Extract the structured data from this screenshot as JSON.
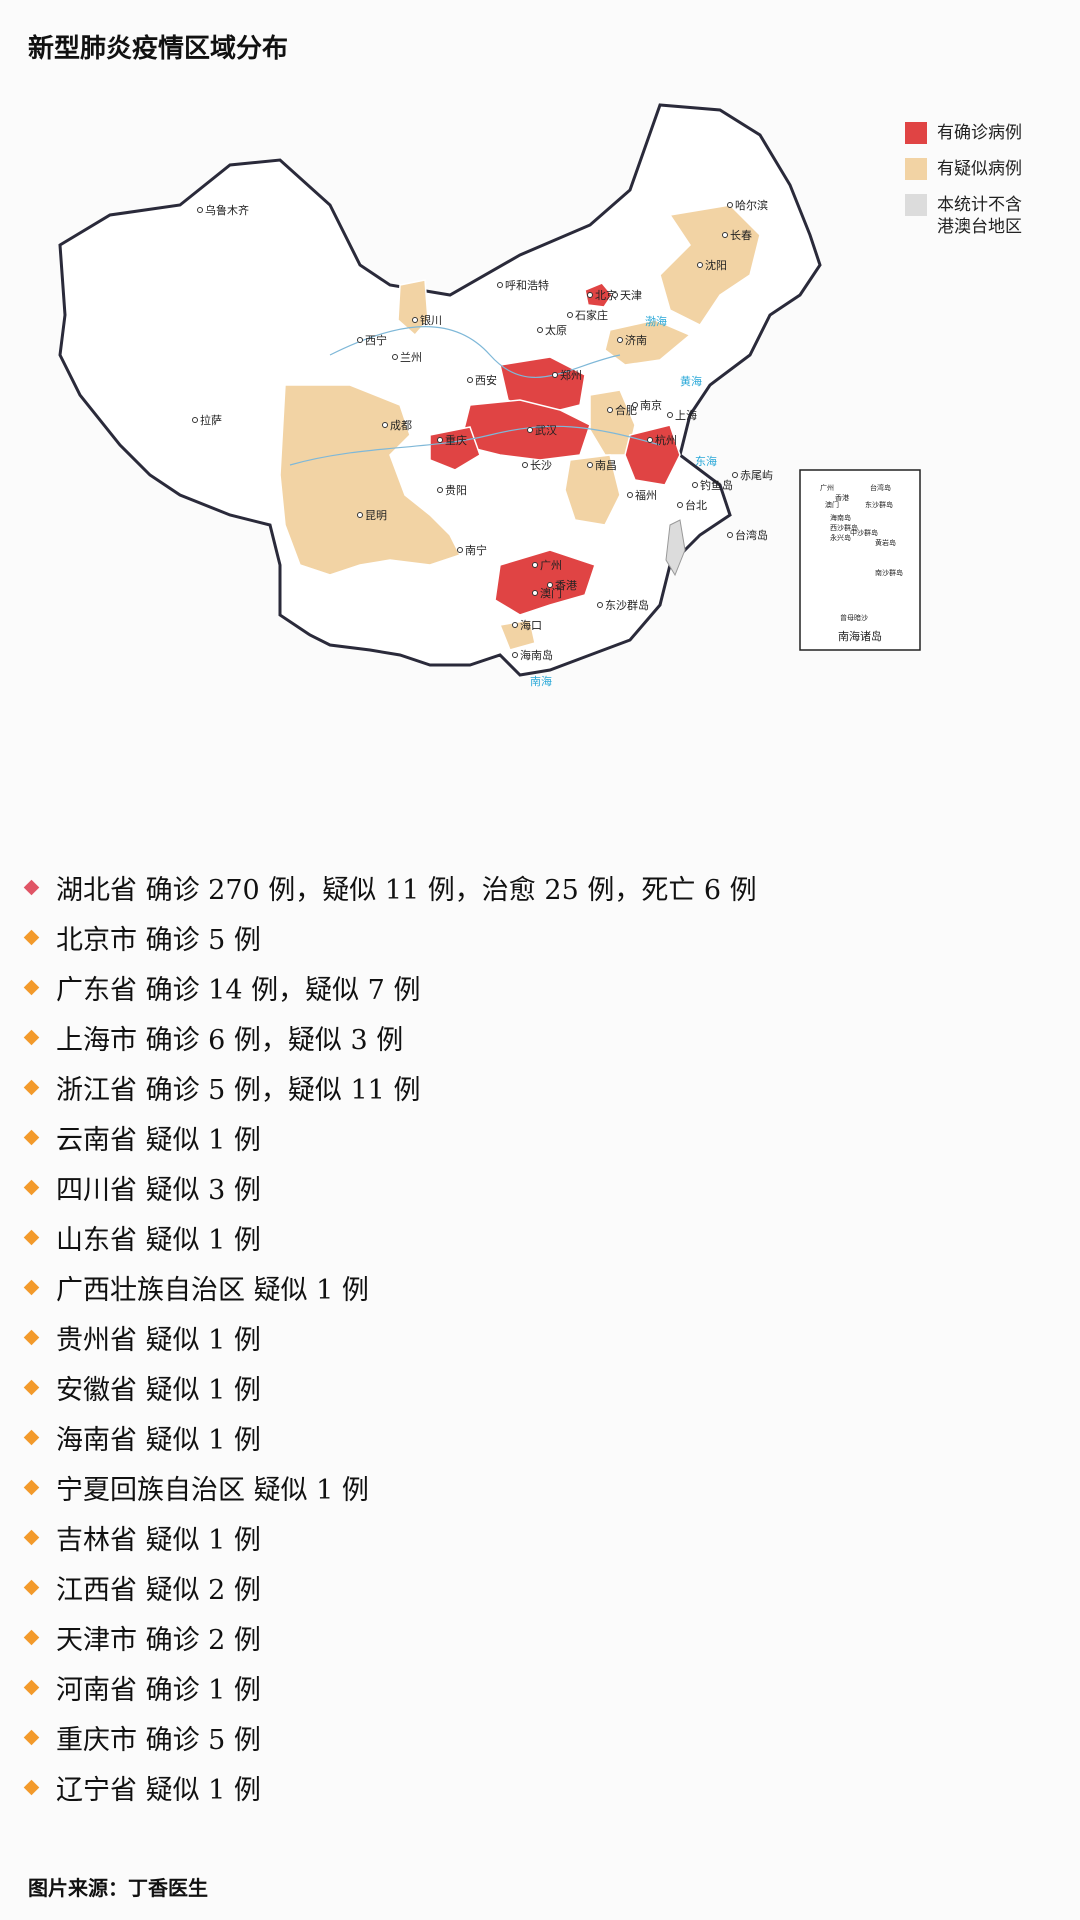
{
  "title": "新型肺炎疫情区域分布",
  "legend": [
    {
      "label": "有确诊病例",
      "color": "#e04444"
    },
    {
      "label": "有疑似病例",
      "color": "#f2d3a4"
    },
    {
      "label": "本统计不含\n港澳台地区",
      "color": "#dcdcdc"
    }
  ],
  "map": {
    "cities": [
      "乌鲁木齐",
      "哈尔滨",
      "长春",
      "沈阳",
      "呼和浩特",
      "北京",
      "天津",
      "石家庄",
      "银川",
      "太原",
      "济南",
      "西宁",
      "兰州",
      "西安",
      "郑州",
      "合肥",
      "南京",
      "上海",
      "拉萨",
      "成都",
      "重庆",
      "武汉",
      "杭州",
      "长沙",
      "南昌",
      "贵阳",
      "福州",
      "昆明",
      "台北",
      "南宁",
      "广州",
      "香港",
      "澳门",
      "海口",
      "钓鱼岛",
      "赤尾屿",
      "台湾岛",
      "东沙群岛",
      "海南岛"
    ],
    "seas": [
      "渤海",
      "黄海",
      "东海",
      "南海"
    ],
    "inset_label": "南海诸岛",
    "inset_places": [
      "广州",
      "台湾岛",
      "香港",
      "澳门",
      "东沙群岛",
      "海南岛",
      "中沙群岛",
      "西沙群岛",
      "永兴岛",
      "黄岩岛",
      "南沙群岛",
      "曾母暗沙"
    ]
  },
  "marker_colors": {
    "hubei": "#e05566",
    "default": "#f39a2b"
  },
  "stats": [
    "湖北省 确诊 270 例，疑似 11 例，治愈 25 例，死亡 6 例",
    "北京市 确诊 5 例",
    "广东省 确诊 14 例，疑似 7 例",
    "上海市 确诊 6 例，疑似 3 例",
    "浙江省 确诊 5 例，疑似 11 例",
    "云南省 疑似 1 例",
    "四川省 疑似 3 例",
    "山东省 疑似 1 例",
    "广西壮族自治区 疑似 1 例",
    "贵州省 疑似 1 例",
    "安徽省 疑似 1 例",
    "海南省 疑似 1 例",
    "宁夏回族自治区 疑似 1 例",
    "吉林省 疑似 1 例",
    "江西省 疑似 2 例",
    "天津市 确诊 2 例",
    "河南省 确诊 1 例",
    "重庆市 确诊 5 例",
    "辽宁省 疑似 1 例"
  ],
  "source": "图片来源：丁香医生"
}
